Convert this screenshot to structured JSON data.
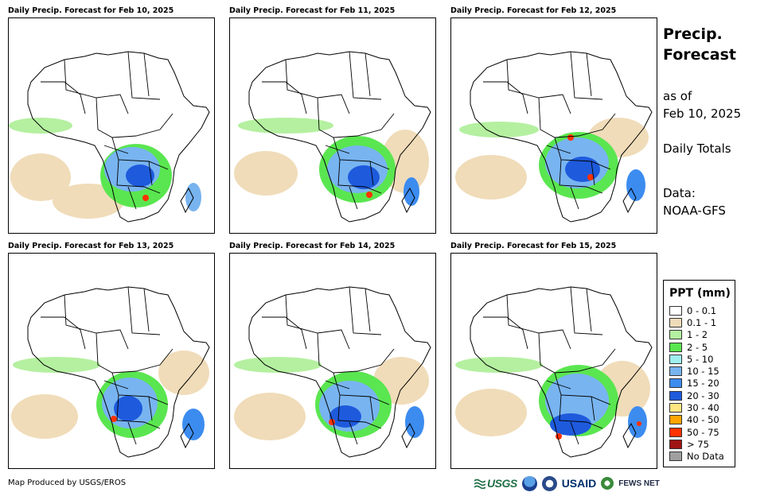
{
  "panels": [
    {
      "title": "Daily Precip. Forecast for Feb 10, 2025"
    },
    {
      "title": "Daily Precip. Forecast for Feb 11, 2025"
    },
    {
      "title": "Daily Precip. Forecast for Feb 12, 2025"
    },
    {
      "title": "Daily Precip. Forecast for Feb 13, 2025"
    },
    {
      "title": "Daily Precip. Forecast for Feb 14, 2025"
    },
    {
      "title": "Daily Precip. Forecast for Feb 15, 2025"
    }
  ],
  "side": {
    "title_line1": "Precip.",
    "title_line2": "Forecast",
    "asof_line1": "as of",
    "asof_line2": "Feb 10, 2025",
    "totals": "Daily Totals",
    "data_line1": "Data:",
    "data_line2": "NOAA-GFS"
  },
  "legend": {
    "title": "PPT (mm)",
    "items": [
      {
        "label": "0 - 0.1",
        "color": "#ffffff"
      },
      {
        "label": "0.1 - 1",
        "color": "#f0dcb9"
      },
      {
        "label": "1 - 2",
        "color": "#b4f0a0"
      },
      {
        "label": "2 - 5",
        "color": "#5ae650"
      },
      {
        "label": "5 - 10",
        "color": "#a0f0f0"
      },
      {
        "label": "10 - 15",
        "color": "#78b4f0"
      },
      {
        "label": "15 - 20",
        "color": "#3c8cf0"
      },
      {
        "label": "20 - 30",
        "color": "#1e5adc"
      },
      {
        "label": "30 - 40",
        "color": "#ffe682"
      },
      {
        "label": "40 - 50",
        "color": "#ffa500"
      },
      {
        "label": "50 - 75",
        "color": "#ff3200"
      },
      {
        "label": "> 75",
        "color": "#a01414"
      },
      {
        "label": "No Data",
        "color": "#a0a0a0"
      }
    ]
  },
  "footer": {
    "credit": "Map Produced by USGS/EROS",
    "logo_usgs": "USGS",
    "logo_usaid": "USAID",
    "logo_fews": "FEWS NET"
  }
}
